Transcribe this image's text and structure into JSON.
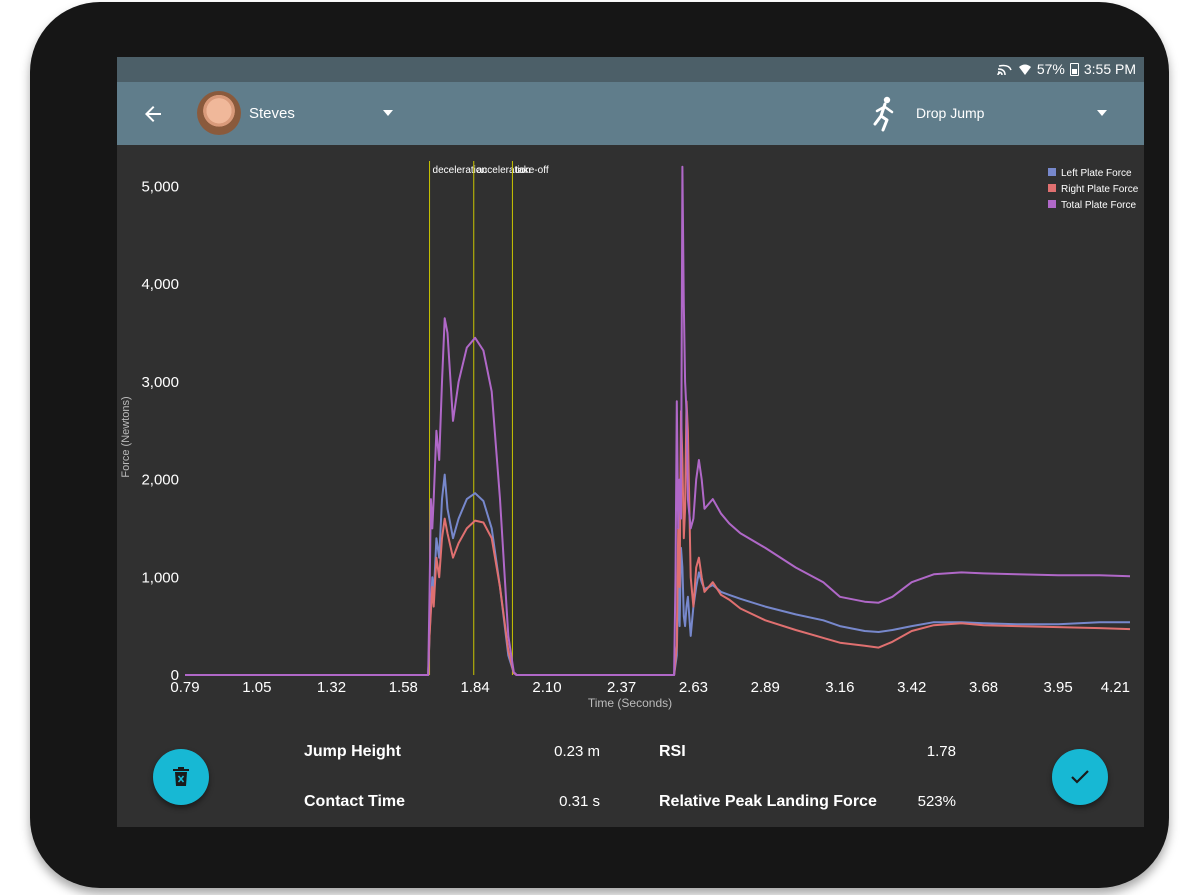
{
  "status": {
    "battery": "57%",
    "time": "3:55 PM"
  },
  "header": {
    "athlete_name": "Steves",
    "test_name": "Drop Jump"
  },
  "chart_data": {
    "type": "line",
    "xlabel": "Time (Seconds)",
    "ylabel": "Force (Newtons)",
    "xlim": [
      0.79,
      4.21
    ],
    "ylim": [
      0,
      5300
    ],
    "x_ticks": [
      "0.79",
      "1.05",
      "1.32",
      "1.58",
      "1.84",
      "2.10",
      "2.37",
      "2.63",
      "2.89",
      "3.16",
      "3.42",
      "3.68",
      "3.95",
      "4.21"
    ],
    "y_ticks": [
      0,
      1000,
      2000,
      3000,
      4000,
      5000
    ],
    "y_tick_labels": [
      "0",
      "1,000",
      "2,000",
      "3,000",
      "4,000",
      "5,000"
    ],
    "legend_position": "top-right",
    "markers": [
      {
        "label": "deceleration",
        "x": 1.675
      },
      {
        "label": "acceleration",
        "x": 1.835
      },
      {
        "label": "take-off",
        "x": 1.975
      }
    ],
    "series": [
      {
        "name": "Left Plate Force",
        "color": "#7788cc",
        "x": [
          0.79,
          1.67,
          1.675,
          1.685,
          1.69,
          1.7,
          1.71,
          1.72,
          1.73,
          1.74,
          1.76,
          1.78,
          1.81,
          1.84,
          1.87,
          1.9,
          1.93,
          1.96,
          1.98,
          1.99,
          2.0,
          2.56,
          2.57,
          2.575,
          2.58,
          2.585,
          2.59,
          2.595,
          2.6,
          2.605,
          2.61,
          2.62,
          2.63,
          2.64,
          2.65,
          2.66,
          2.67,
          2.7,
          2.73,
          2.76,
          2.8,
          2.89,
          3.0,
          3.1,
          3.16,
          3.25,
          3.3,
          3.35,
          3.42,
          3.5,
          3.6,
          3.68,
          3.8,
          3.95,
          4.1,
          4.21
        ],
        "y": [
          0,
          0,
          400,
          1000,
          800,
          1400,
          1200,
          1800,
          2050,
          1700,
          1400,
          1600,
          1800,
          1860,
          1780,
          1500,
          900,
          200,
          20,
          0,
          0,
          0,
          200,
          1000,
          500,
          1300,
          1100,
          600,
          500,
          700,
          800,
          400,
          700,
          900,
          1050,
          950,
          880,
          920,
          850,
          820,
          780,
          700,
          620,
          560,
          500,
          450,
          440,
          460,
          500,
          540,
          540,
          530,
          520,
          520,
          540,
          540
        ]
      },
      {
        "name": "Right Plate Force",
        "color": "#e07070",
        "x": [
          0.79,
          1.67,
          1.675,
          1.685,
          1.69,
          1.7,
          1.71,
          1.72,
          1.73,
          1.74,
          1.76,
          1.78,
          1.81,
          1.84,
          1.87,
          1.9,
          1.93,
          1.96,
          1.98,
          1.99,
          2.0,
          2.56,
          2.57,
          2.575,
          2.58,
          2.585,
          2.59,
          2.595,
          2.6,
          2.605,
          2.61,
          2.62,
          2.63,
          2.64,
          2.65,
          2.66,
          2.67,
          2.7,
          2.73,
          2.76,
          2.8,
          2.89,
          3.0,
          3.1,
          3.16,
          3.25,
          3.3,
          3.35,
          3.42,
          3.5,
          3.6,
          3.68,
          3.8,
          3.95,
          4.1,
          4.21
        ],
        "y": [
          0,
          0,
          400,
          900,
          700,
          1200,
          1000,
          1400,
          1600,
          1450,
          1200,
          1350,
          1500,
          1580,
          1560,
          1400,
          900,
          250,
          20,
          0,
          0,
          0,
          300,
          1500,
          900,
          2700,
          2200,
          1400,
          1700,
          2800,
          2500,
          1000,
          700,
          1100,
          1200,
          1000,
          850,
          950,
          820,
          770,
          680,
          560,
          460,
          380,
          330,
          300,
          280,
          340,
          450,
          510,
          530,
          510,
          500,
          490,
          480,
          470
        ]
      },
      {
        "name": "Total Plate Force",
        "color": "#b068c8",
        "x": [
          0.79,
          1.67,
          1.675,
          1.68,
          1.685,
          1.69,
          1.7,
          1.71,
          1.72,
          1.73,
          1.74,
          1.76,
          1.78,
          1.81,
          1.84,
          1.87,
          1.9,
          1.93,
          1.96,
          1.98,
          1.99,
          2.0,
          2.56,
          2.565,
          2.57,
          2.575,
          2.58,
          2.585,
          2.59,
          2.595,
          2.6,
          2.605,
          2.61,
          2.62,
          2.63,
          2.64,
          2.65,
          2.66,
          2.67,
          2.7,
          2.73,
          2.76,
          2.8,
          2.89,
          3.0,
          3.1,
          3.16,
          3.25,
          3.3,
          3.35,
          3.42,
          3.5,
          3.6,
          3.68,
          3.8,
          3.95,
          4.1,
          4.21
        ],
        "y": [
          0,
          0,
          800,
          1800,
          1500,
          1800,
          2500,
          2200,
          3000,
          3650,
          3500,
          2600,
          3000,
          3350,
          3450,
          3320,
          2900,
          1800,
          400,
          30,
          0,
          0,
          0,
          1000,
          2800,
          1500,
          2000,
          1600,
          5200,
          3800,
          3000,
          2700,
          1800,
          1500,
          1600,
          2000,
          2200,
          2000,
          1700,
          1800,
          1650,
          1550,
          1450,
          1300,
          1100,
          950,
          800,
          750,
          740,
          800,
          950,
          1030,
          1050,
          1040,
          1030,
          1020,
          1020,
          1010
        ]
      }
    ]
  },
  "metrics": [
    {
      "label": "Jump Height",
      "value": "0.23 m"
    },
    {
      "label": "Contact Time",
      "value": "0.31 s"
    },
    {
      "label": "RSI",
      "value": "1.78"
    },
    {
      "label": "Relative Peak Landing Force",
      "value": "523%"
    }
  ],
  "icons": {
    "back": "arrow-left-icon",
    "delete": "delete-icon",
    "confirm": "check-icon",
    "test": "running-person-icon"
  }
}
